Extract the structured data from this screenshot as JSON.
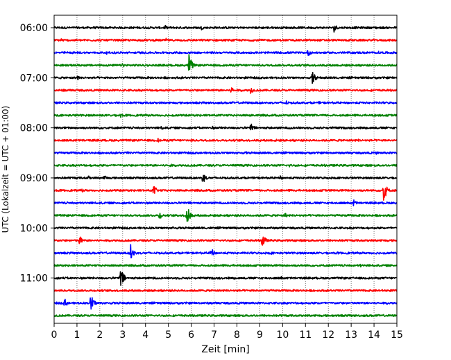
{
  "chart_data": {
    "type": "line",
    "title": "",
    "xlabel": "Zeit  [min]",
    "ylabel": "UTC (Lokalzeit = UTC + 01:00)",
    "xlim": [
      0,
      15
    ],
    "x_ticks": [
      "0",
      "1",
      "2",
      "3",
      "4",
      "5",
      "6",
      "7",
      "8",
      "9",
      "10",
      "11",
      "12",
      "13",
      "14",
      "15"
    ],
    "y_tick_labels": [
      "06:00",
      "07:00",
      "08:00",
      "09:00",
      "10:00",
      "11:00"
    ],
    "grid": "vertical dotted at each minute",
    "color_cycle": [
      "#000000",
      "#ff0000",
      "#0000ff",
      "#008000"
    ],
    "trace_interval_min": 15,
    "series": [
      {
        "start": "06:00",
        "events": [
          {
            "t": 4.85,
            "a": 0.35
          },
          {
            "t": 6.45,
            "a": 0.3
          },
          {
            "t": 9.5,
            "a": 0.2
          },
          {
            "t": 10.55,
            "a": 0.25
          },
          {
            "t": 12.25,
            "a": 0.6
          },
          {
            "t": 14.05,
            "a": 0.25
          }
        ]
      },
      {
        "start": "06:15",
        "events": [
          {
            "t": 0.3,
            "a": 0.35
          },
          {
            "t": 4.9,
            "a": 0.25
          },
          {
            "t": 11.15,
            "a": 0.2
          },
          {
            "t": 13.95,
            "a": 0.2
          }
        ]
      },
      {
        "start": "06:30",
        "events": [
          {
            "t": 2.3,
            "a": 0.2
          },
          {
            "t": 11.1,
            "a": 0.55
          },
          {
            "t": 14.2,
            "a": 0.2
          }
        ]
      },
      {
        "start": "06:45",
        "events": [
          {
            "t": 3.0,
            "a": 0.35
          },
          {
            "t": 5.9,
            "a": 1.5
          },
          {
            "t": 10.3,
            "a": 0.2
          }
        ]
      },
      {
        "start": "07:00",
        "events": [
          {
            "t": 1.0,
            "a": 0.4
          },
          {
            "t": 11.3,
            "a": 1.0
          }
        ]
      },
      {
        "start": "07:15",
        "events": [
          {
            "t": 0.4,
            "a": 0.25
          },
          {
            "t": 7.75,
            "a": 0.55
          },
          {
            "t": 8.6,
            "a": 0.5
          }
        ]
      },
      {
        "start": "07:30",
        "events": [
          {
            "t": 10.1,
            "a": 0.5
          },
          {
            "t": 11.6,
            "a": 0.2
          }
        ]
      },
      {
        "start": "07:45",
        "events": [
          {
            "t": 2.9,
            "a": 0.35
          },
          {
            "t": 8.55,
            "a": 0.2
          },
          {
            "t": 14.0,
            "a": 0.2
          }
        ]
      },
      {
        "start": "08:00",
        "events": [
          {
            "t": 4.7,
            "a": 0.3
          },
          {
            "t": 6.9,
            "a": 0.3
          },
          {
            "t": 8.6,
            "a": 0.7
          },
          {
            "t": 10.3,
            "a": 0.25
          }
        ]
      },
      {
        "start": "08:15",
        "events": [
          {
            "t": 4.55,
            "a": 0.3
          },
          {
            "t": 6.0,
            "a": 0.25
          },
          {
            "t": 9.7,
            "a": 0.2
          },
          {
            "t": 13.3,
            "a": 0.2
          }
        ]
      },
      {
        "start": "08:30",
        "events": [
          {
            "t": 3.2,
            "a": 0.2
          },
          {
            "t": 8.4,
            "a": 0.2
          },
          {
            "t": 14.1,
            "a": 0.2
          }
        ]
      },
      {
        "start": "08:45",
        "events": [
          {
            "t": 5.05,
            "a": 0.35
          },
          {
            "t": 10.3,
            "a": 0.25
          }
        ]
      },
      {
        "start": "09:00",
        "events": [
          {
            "t": 1.5,
            "a": 0.3
          },
          {
            "t": 2.2,
            "a": 0.45
          },
          {
            "t": 6.5,
            "a": 0.9
          },
          {
            "t": 9.9,
            "a": 0.3
          }
        ]
      },
      {
        "start": "09:15",
        "events": [
          {
            "t": 1.2,
            "a": 0.3
          },
          {
            "t": 4.35,
            "a": 0.8
          },
          {
            "t": 14.4,
            "a": 1.9
          }
        ]
      },
      {
        "start": "09:30",
        "events": [
          {
            "t": 13.1,
            "a": 0.5
          }
        ]
      },
      {
        "start": "09:45",
        "events": [
          {
            "t": 4.6,
            "a": 0.6
          },
          {
            "t": 5.8,
            "a": 1.6
          },
          {
            "t": 10.1,
            "a": 0.4
          }
        ]
      },
      {
        "start": "10:00",
        "events": [
          {
            "t": 5.2,
            "a": 0.2
          },
          {
            "t": 9.5,
            "a": 0.2
          }
        ]
      },
      {
        "start": "10:15",
        "events": [
          {
            "t": 1.1,
            "a": 0.75
          },
          {
            "t": 9.1,
            "a": 1.1
          }
        ]
      },
      {
        "start": "10:30",
        "events": [
          {
            "t": 3.35,
            "a": 1.25
          },
          {
            "t": 6.85,
            "a": 0.85
          },
          {
            "t": 9.5,
            "a": 0.2
          }
        ]
      },
      {
        "start": "10:45",
        "events": [
          {
            "t": 13.4,
            "a": 0.25
          }
        ]
      },
      {
        "start": "11:00",
        "events": [
          {
            "t": 2.9,
            "a": 1.7
          },
          {
            "t": 4.3,
            "a": 0.25
          },
          {
            "t": 9.9,
            "a": 0.3
          }
        ]
      },
      {
        "start": "11:15",
        "events": [
          {
            "t": 2.0,
            "a": 0.2
          },
          {
            "t": 14.9,
            "a": 0.2
          }
        ]
      },
      {
        "start": "11:30",
        "events": [
          {
            "t": 0.45,
            "a": 0.7
          },
          {
            "t": 1.6,
            "a": 1.3
          },
          {
            "t": 11.6,
            "a": 0.2
          },
          {
            "t": 13.2,
            "a": 0.2
          }
        ]
      },
      {
        "start": "11:45",
        "events": [
          {
            "t": 6.0,
            "a": 0.2
          }
        ]
      }
    ]
  }
}
